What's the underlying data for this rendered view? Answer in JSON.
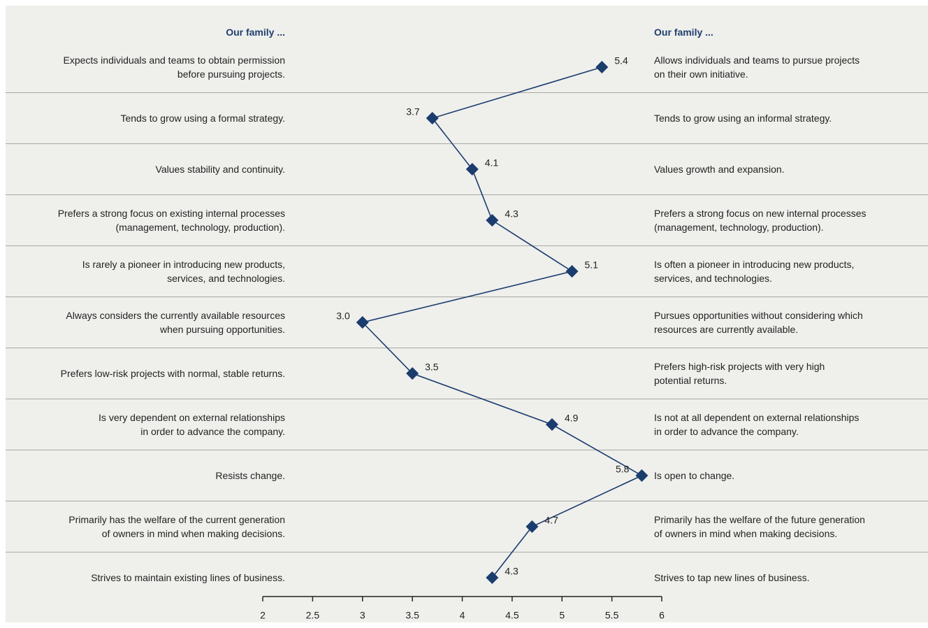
{
  "chart_data": {
    "type": "line",
    "left_header": "Our family ...",
    "right_header": "Our family ...",
    "left_labels": [
      "Expects individuals and teams to obtain permission\nbefore pursuing projects.",
      "Tends to grow using a formal strategy.",
      "Values stability and continuity.",
      "Prefers a strong focus on existing internal processes\n(management, technology, production).",
      "Is rarely a pioneer in introducing new products,\nservices, and technologies.",
      "Always considers the currently available resources\nwhen pursuing opportunities.",
      "Prefers low-risk projects with normal, stable returns.",
      "Is very dependent on external relationships\nin order to advance the company.",
      "Resists change.",
      "Primarily has the welfare of the current generation\nof owners in mind when making decisions.",
      "Strives to maintain existing lines of business."
    ],
    "right_labels": [
      "Allows individuals and teams to pursue projects\non their own initiative.",
      "Tends to grow using an informal strategy.",
      "Values growth and expansion.",
      "Prefers a strong focus on new internal processes\n(management, technology, production).",
      "Is often a pioneer in introducing new products,\nservices, and technologies.",
      "Pursues opportunities without considering which\nresources are currently available.",
      "Prefers high-risk projects with very high\npotential returns.",
      "Is not at all dependent on external relationships\nin order to advance the company.",
      "Is open to change.",
      "Primarily has the welfare of the future generation\nof owners in mind when making decisions.",
      "Strives to tap new lines of business."
    ],
    "values": [
      5.4,
      3.7,
      4.1,
      4.3,
      5.1,
      3.0,
      3.5,
      4.9,
      5.8,
      4.7,
      4.3
    ],
    "value_labels": [
      "5.4",
      "3.7",
      "4.1",
      "4.3",
      "5.1",
      "3.0",
      "3.5",
      "4.9",
      "5.8",
      "4.7",
      "4.3"
    ],
    "color": "#1a3d6d",
    "xlim": [
      2,
      6
    ],
    "xticks": [
      2,
      2.5,
      3,
      3.5,
      4,
      4.5,
      5,
      5.5,
      6
    ]
  }
}
